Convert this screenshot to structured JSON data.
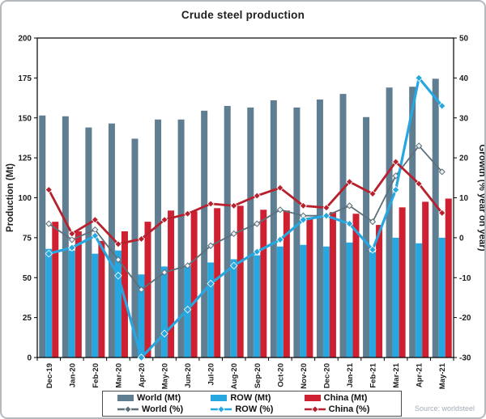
{
  "title": "Crude steel production",
  "source": "Source: worldsteel",
  "chart_data": {
    "type": "combo-bar-line",
    "categories": [
      "Dec-19",
      "Jan-20",
      "Feb-20",
      "Mar-20",
      "Apr-20",
      "May-20",
      "Jun-20",
      "Jul-20",
      "Aug-20",
      "Sep-20",
      "Oct-20",
      "Nov-20",
      "Dec-20",
      "Jan-21",
      "Feb-21",
      "Mar-21",
      "Apr-21",
      "May-21"
    ],
    "bar_series": [
      {
        "name": "World (Mt)",
        "color": "#5f7e91",
        "axis": "left",
        "values": [
          151.5,
          151,
          144,
          146.5,
          137,
          149,
          149,
          154.5,
          157.5,
          156.5,
          161,
          156.5,
          161.5,
          165,
          150.5,
          169,
          169.5,
          174.5
        ]
      },
      {
        "name": "ROW (Mt)",
        "color": "#27a7df",
        "axis": "left",
        "values": [
          68,
          67,
          65,
          67,
          52,
          57,
          57,
          59.5,
          61.5,
          64,
          69.5,
          70.5,
          69.5,
          72,
          66,
          75,
          71.5,
          75
        ]
      },
      {
        "name": "China (Mt)",
        "color": "#ce2030",
        "axis": "left",
        "values": [
          85,
          79,
          73,
          79,
          85,
          92,
          91.5,
          93.5,
          95,
          92.5,
          92,
          87.5,
          91,
          90,
          83,
          94,
          97.5,
          99.5
        ]
      }
    ],
    "line_series": [
      {
        "name": "World (%)",
        "color": "#5d6f7a",
        "axis": "right",
        "values": [
          3.5,
          -0.5,
          2,
          -5.5,
          -13,
          -8.7,
          -7,
          -2,
          1,
          3.5,
          7,
          5.5,
          5.5,
          8,
          4,
          15.5,
          23,
          16.5
        ]
      },
      {
        "name": "ROW (%)",
        "color": "#27a7df",
        "axis": "right",
        "values": [
          -4,
          -2.5,
          0.5,
          -9.5,
          -30,
          -24,
          -18,
          -11.5,
          -7,
          -3.5,
          -0.5,
          4.5,
          5.5,
          3.5,
          -3,
          12,
          40,
          33
        ]
      },
      {
        "name": "China (%)",
        "color": "#b7202c",
        "axis": "right",
        "values": [
          12,
          1,
          4.5,
          -1.6,
          -0.3,
          4.5,
          6,
          8.5,
          8,
          10.5,
          12.5,
          8,
          7.5,
          14,
          11,
          19,
          13.5,
          6.2
        ]
      }
    ],
    "left_axis": {
      "title": "Production (Mt)",
      "min": 0,
      "max": 200,
      "step": 25
    },
    "right_axis": {
      "title": "Growth (% year on year)",
      "min": -30,
      "max": 50,
      "step": 10
    },
    "legend_position": "bottom",
    "grid": false
  }
}
